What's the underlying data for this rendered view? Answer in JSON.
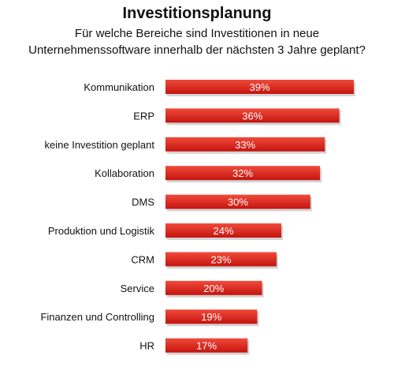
{
  "title": "Investitionsplanung",
  "subtitle_line1": "Für welche Bereiche sind Investitionen in neue",
  "subtitle_line2": "Unternehmenssoftware innerhalb der nächsten 3 Jahre geplant?",
  "colors": {
    "bar_top": "#f04a3a",
    "bar_bottom": "#c4140f",
    "bar_shadow": "#b8b8b8"
  },
  "chart_data": {
    "type": "bar",
    "orientation": "horizontal",
    "categories": [
      "Kommunikation",
      "ERP",
      "keine Investition geplant",
      "Kollaboration",
      "DMS",
      "Produktion und Logistik",
      "CRM",
      "Service",
      "Finanzen und Controlling",
      "HR"
    ],
    "values": [
      39,
      36,
      33,
      32,
      30,
      24,
      23,
      20,
      19,
      17
    ],
    "value_labels": [
      "39%",
      "36%",
      "33%",
      "32%",
      "30%",
      "24%",
      "23%",
      "20%",
      "19%",
      "17%"
    ],
    "xlim": [
      0,
      39
    ],
    "grid": false,
    "legend": "none"
  }
}
